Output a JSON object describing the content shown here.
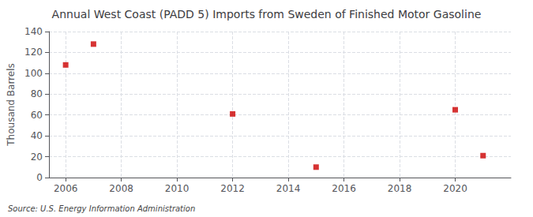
{
  "chart_data": {
    "type": "scatter",
    "title": "Annual West Coast (PADD 5) Imports from Sweden of Finished Motor Gasoline",
    "ylabel": "Thousand Barrels",
    "annotation": "Source: U.S. Energy Information Administration",
    "x": [
      2006,
      2007,
      2012,
      2015,
      2020,
      2021
    ],
    "values": [
      108,
      128,
      61,
      10,
      65,
      21
    ],
    "color": "#cc0000",
    "marker": "square",
    "xlim": [
      2005.4,
      2022.0
    ],
    "xticks": [
      2006,
      2008,
      2010,
      2012,
      2014,
      2016,
      2018,
      2020
    ],
    "ylim": [
      0,
      140
    ],
    "yticks": [
      0,
      20,
      40,
      60,
      80,
      100,
      120,
      140
    ],
    "grid": true
  }
}
